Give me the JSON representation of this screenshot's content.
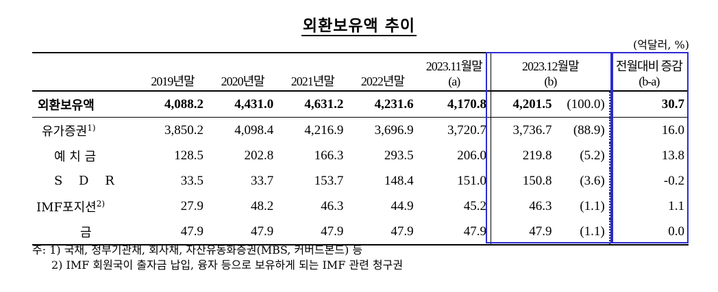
{
  "title": "외환보유액 추이",
  "unit": "(억달러, %)",
  "headers": {
    "y2019": "2019년말",
    "y2020": "2020년말",
    "y2021": "2021년말",
    "y2022": "2022년말",
    "nov2023": "2023.11월말",
    "nov2023_sub": "(a)",
    "dec2023": "2023.12월말",
    "dec2023_sub": "(b)",
    "change": "전월대비 증감",
    "change_sub": "(b-a)"
  },
  "rows": [
    {
      "label": "외환보유액",
      "note": "",
      "v": [
        "4,088.2",
        "4,431.0",
        "4,631.2",
        "4,231.6",
        "4,170.8",
        "4,201.5",
        "(100.0)",
        "30.7"
      ]
    },
    {
      "label": "유가증권",
      "note": "1)",
      "v": [
        "3,850.2",
        "4,098.4",
        "4,216.9",
        "3,696.9",
        "3,720.7",
        "3,736.7",
        "(88.9)",
        "16.0"
      ]
    },
    {
      "label": "예 치 금",
      "note": "",
      "v": [
        "128.5",
        "202.8",
        "166.3",
        "293.5",
        "206.0",
        "219.8",
        "(5.2)",
        "13.8"
      ]
    },
    {
      "label": "S D R",
      "note": "",
      "v": [
        "33.5",
        "33.7",
        "153.7",
        "148.4",
        "151.0",
        "150.8",
        "(3.6)",
        "-0.2"
      ]
    },
    {
      "label": "IMF포지션",
      "note": "2)",
      "v": [
        "27.9",
        "48.2",
        "46.3",
        "44.9",
        "45.2",
        "46.3",
        "(1.1)",
        "1.1"
      ]
    },
    {
      "label": "금",
      "note": "",
      "v": [
        "47.9",
        "47.9",
        "47.9",
        "47.9",
        "47.9",
        "47.9",
        "(1.1)",
        "0.0"
      ]
    }
  ],
  "notes": [
    "주: 1) 국채, 정부기관채, 회사채, 자산유동화증권(MBS, 커버드본드) 등",
    "2) IMF 회원국이 출자금 납입, 융자 등으로 보유하게 되는 IMF 관련 청구권"
  ],
  "colors": {
    "highlight_border": "#2b2bd0"
  }
}
